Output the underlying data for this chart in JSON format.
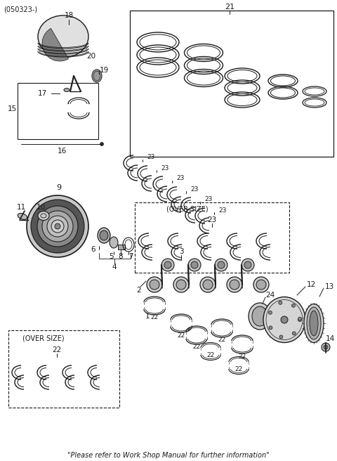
{
  "part_number": "(050323-)",
  "footer": "\"Please refer to Work Shop Manual for further information\"",
  "bg_color": "#ffffff",
  "line_color": "#1a1a1a",
  "fig_width": 4.8,
  "fig_height": 6.56,
  "dpi": 100
}
